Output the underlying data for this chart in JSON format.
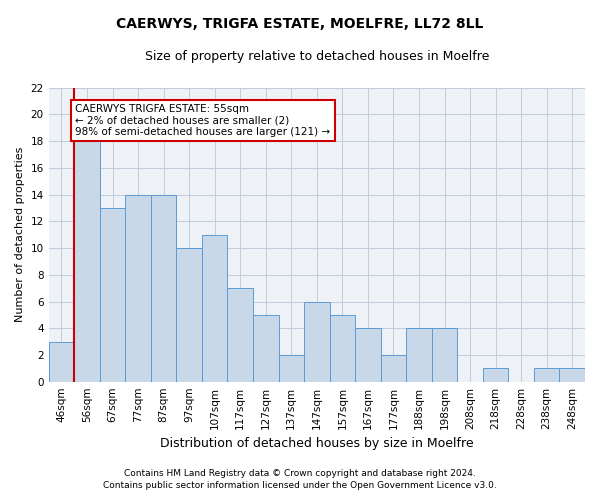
{
  "title_line1": "CAERWYS, TRIGFA ESTATE, MOELFRE, LL72 8LL",
  "title_line2": "Size of property relative to detached houses in Moelfre",
  "xlabel": "Distribution of detached houses by size in Moelfre",
  "ylabel": "Number of detached properties",
  "categories": [
    "46sqm",
    "56sqm",
    "67sqm",
    "77sqm",
    "87sqm",
    "97sqm",
    "107sqm",
    "117sqm",
    "127sqm",
    "137sqm",
    "147sqm",
    "157sqm",
    "167sqm",
    "177sqm",
    "188sqm",
    "198sqm",
    "208sqm",
    "218sqm",
    "228sqm",
    "238sqm",
    "248sqm"
  ],
  "values": [
    3,
    18,
    13,
    14,
    14,
    10,
    11,
    7,
    5,
    2,
    6,
    5,
    4,
    2,
    4,
    4,
    0,
    1,
    0,
    1,
    1
  ],
  "bar_color": "#c8d8e8",
  "bar_edge_color": "#5b9bd5",
  "highlight_index": 1,
  "highlight_line_color": "#cc0000",
  "annotation_text": "CAERWYS TRIGFA ESTATE: 55sqm\n← 2% of detached houses are smaller (2)\n98% of semi-detached houses are larger (121) →",
  "annotation_box_color": "#ffffff",
  "annotation_box_edge_color": "#cc0000",
  "ylim": [
    0,
    22
  ],
  "yticks": [
    0,
    2,
    4,
    6,
    8,
    10,
    12,
    14,
    16,
    18,
    20,
    22
  ],
  "footer_line1": "Contains HM Land Registry data © Crown copyright and database right 2024.",
  "footer_line2": "Contains public sector information licensed under the Open Government Licence v3.0.",
  "background_color": "#eef2f7",
  "grid_color": "#c0ccdd",
  "title_fontsize": 10,
  "subtitle_fontsize": 9,
  "ylabel_fontsize": 8,
  "xlabel_fontsize": 9,
  "tick_fontsize": 7.5,
  "annotation_fontsize": 7.5,
  "footer_fontsize": 6.5
}
